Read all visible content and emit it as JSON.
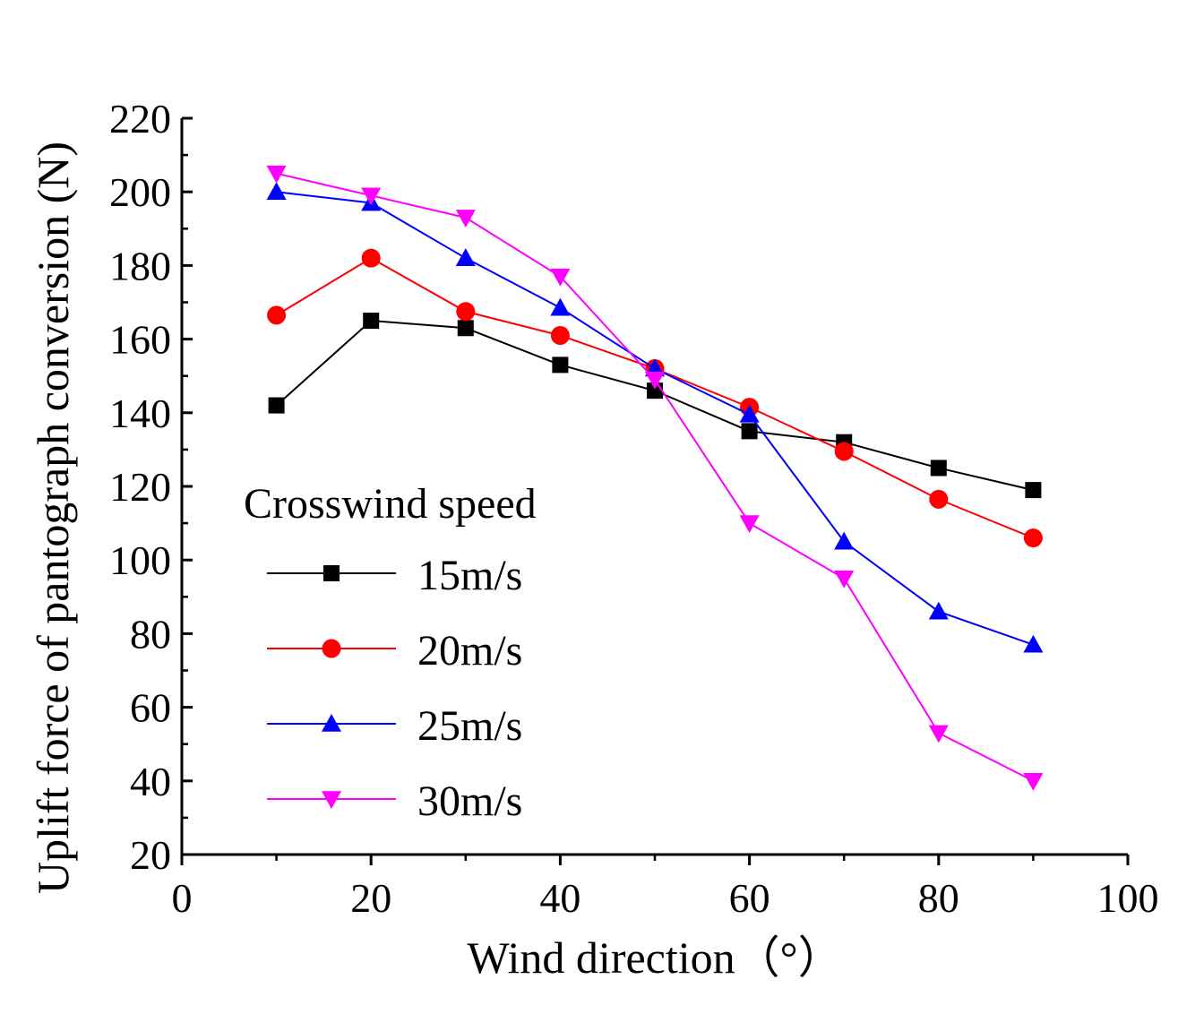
{
  "chart_data": {
    "type": "line",
    "title": "",
    "xlabel": "Wind direction（°）",
    "ylabel": "Uplift force of pantograph conversion (N)",
    "xlim": [
      0,
      100
    ],
    "ylim": [
      20,
      220
    ],
    "xticks": [
      0,
      20,
      40,
      60,
      80,
      100
    ],
    "yticks": [
      20,
      40,
      60,
      80,
      100,
      120,
      140,
      160,
      180,
      200,
      220
    ],
    "grid": false,
    "legend": {
      "title": "Crosswind speed",
      "placement": "left-center"
    },
    "x": [
      10,
      20,
      30,
      40,
      50,
      60,
      70,
      80,
      90
    ],
    "series": [
      {
        "name": "15m/s",
        "color": "#000000",
        "marker": "square",
        "values": [
          142,
          165,
          163,
          153,
          146,
          135,
          132,
          125,
          119
        ]
      },
      {
        "name": "20m/s",
        "color": "#ff0000",
        "marker": "circle",
        "values": [
          166.5,
          182,
          167.5,
          161,
          152,
          141.5,
          129.5,
          116.5,
          106
        ]
      },
      {
        "name": "25m/s",
        "color": "#0000ff",
        "marker": "triangle-up",
        "values": [
          200,
          197,
          182,
          168.5,
          152,
          139.5,
          105,
          86,
          77
        ]
      },
      {
        "name": "30m/s",
        "color": "#ff00ff",
        "marker": "triangle-down",
        "values": [
          205,
          199,
          193,
          177,
          149,
          110,
          95,
          53,
          40
        ]
      }
    ]
  }
}
